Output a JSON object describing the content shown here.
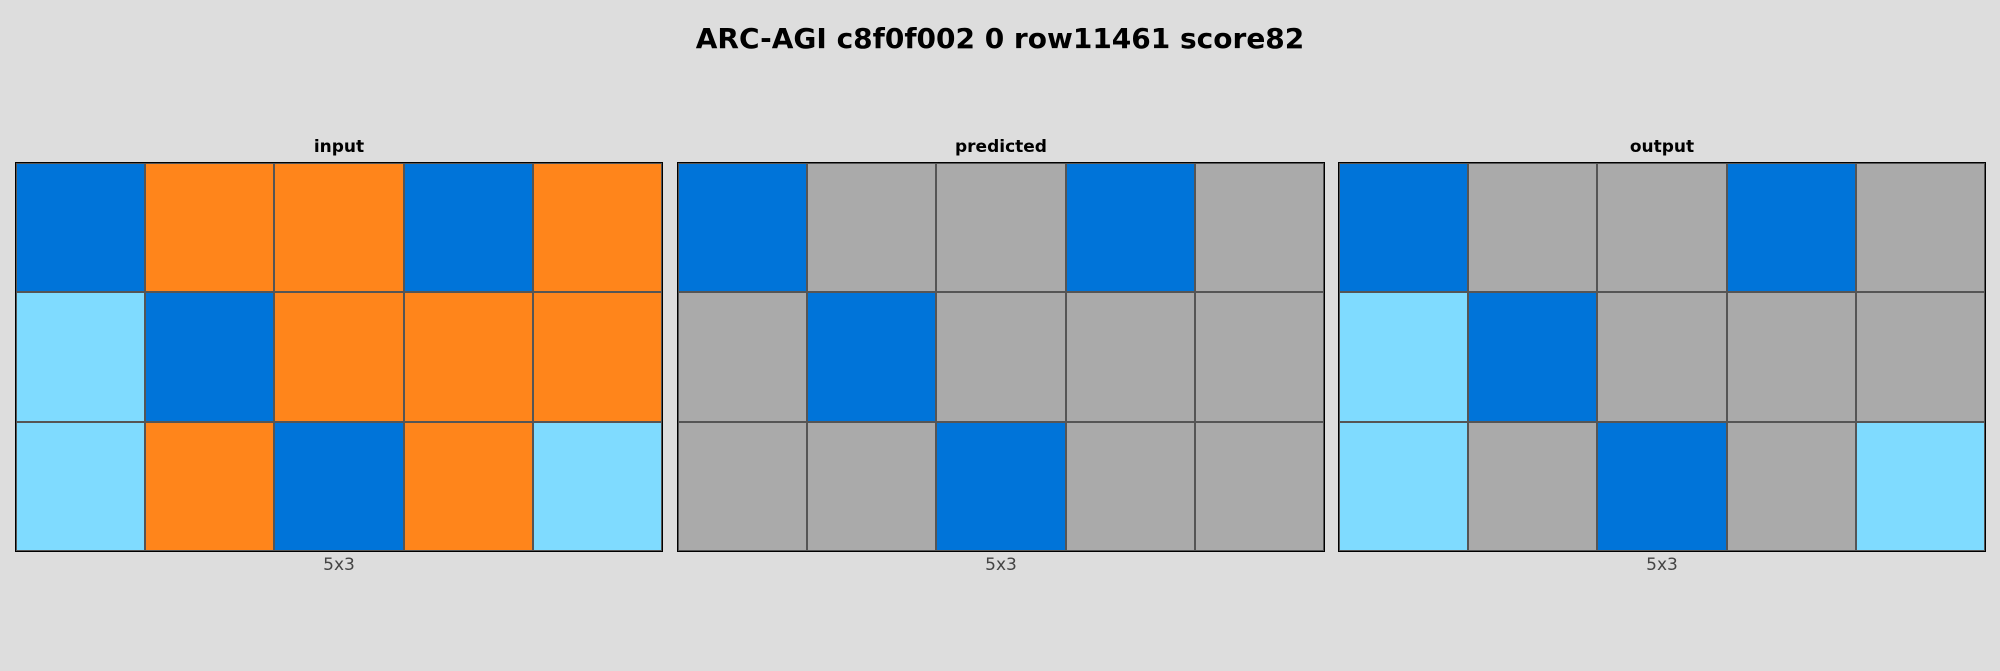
{
  "title": "ARC-AGI c8f0f002 0 row11461 score82",
  "palette": {
    "1": "#0074d9",
    "7": "#ff851b",
    "8": "#7fdbff",
    "5": "#aaaaaa"
  },
  "panels": [
    {
      "label": "input",
      "dims": "5x3",
      "grid": [
        [
          1,
          7,
          7,
          1,
          7
        ],
        [
          8,
          1,
          7,
          7,
          7
        ],
        [
          8,
          7,
          1,
          7,
          8
        ]
      ]
    },
    {
      "label": "predicted",
      "dims": "5x3",
      "grid": [
        [
          1,
          5,
          5,
          1,
          5
        ],
        [
          5,
          1,
          5,
          5,
          5
        ],
        [
          5,
          5,
          1,
          5,
          5
        ]
      ]
    },
    {
      "label": "output",
      "dims": "5x3",
      "grid": [
        [
          1,
          5,
          5,
          1,
          5
        ],
        [
          8,
          1,
          5,
          5,
          5
        ],
        [
          8,
          5,
          1,
          5,
          8
        ]
      ]
    }
  ]
}
